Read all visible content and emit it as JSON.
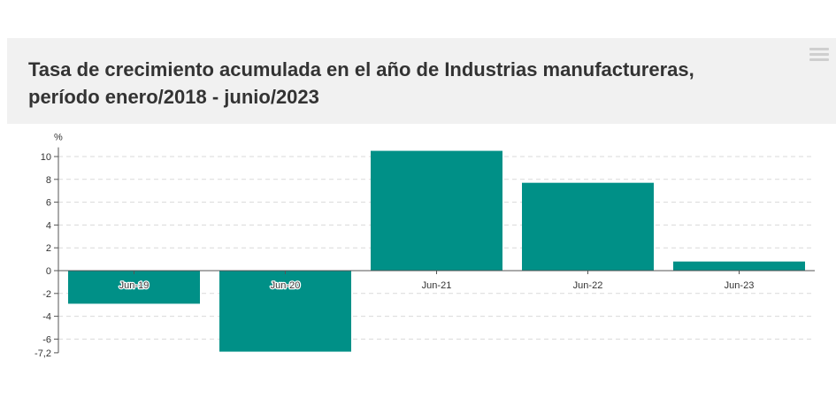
{
  "header": {
    "title_line1": "Tasa de crecimiento acumulada en el año de Industrias manufactureras,",
    "title_line2": "período enero/2018 - junio/2023",
    "menu_icon": "hamburger-menu-icon"
  },
  "colors": {
    "bar": "#009087",
    "header_bg": "#f1f1f1",
    "grid": "#d9d9d9",
    "axis": "#555555"
  },
  "chart_data": {
    "type": "bar",
    "title": "Tasa de crecimiento acumulada en el año de Industrias manufactureras, período enero/2018 - junio/2023",
    "ylabel": "%",
    "xlabel": "",
    "categories": [
      "Jun-19",
      "Jun-20",
      "Jun-21",
      "Jun-22",
      "Jun-23"
    ],
    "values": [
      -2.9,
      -7.1,
      10.5,
      7.7,
      0.8
    ],
    "ylim": [
      -7.2,
      10.8
    ],
    "yticks": [
      10,
      8,
      6,
      4,
      2,
      0,
      -2,
      -4,
      -6,
      -7.2
    ],
    "ytick_labels": [
      "10",
      "8",
      "6",
      "4",
      "2",
      "0",
      "-2",
      "-4",
      "-6",
      "-7,2"
    ],
    "grid": true,
    "legend": "none"
  }
}
